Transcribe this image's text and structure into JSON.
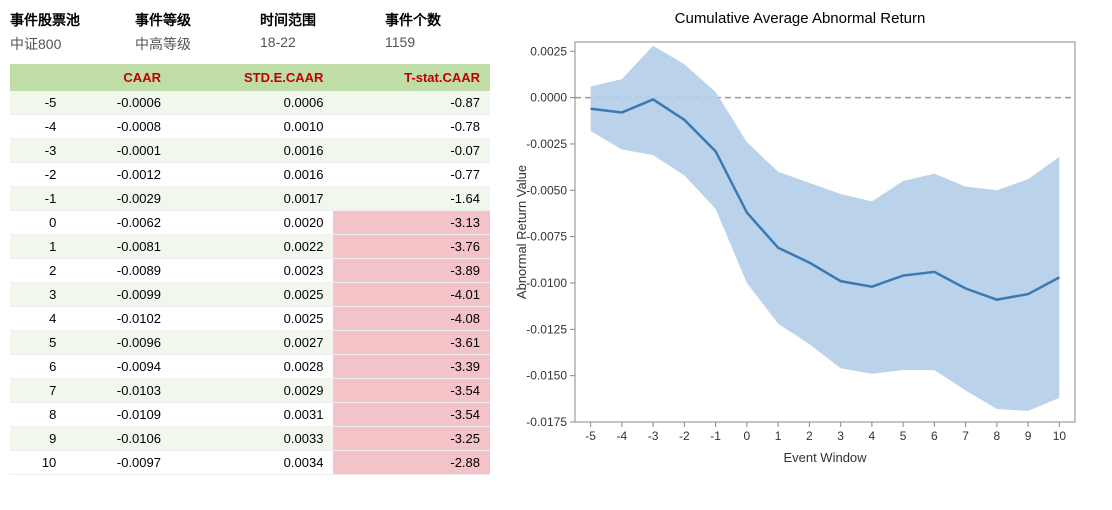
{
  "meta": {
    "pool": {
      "label": "事件股票池",
      "value": "中证800"
    },
    "grade": {
      "label": "事件等级",
      "value": "中高等级"
    },
    "range": {
      "label": "时间范围",
      "value": "18-22"
    },
    "count": {
      "label": "事件个数",
      "value": "1159"
    }
  },
  "table": {
    "columns": [
      "",
      "CAAR",
      "STD.E.CAAR",
      "T-stat.CAAR"
    ],
    "header_colors": [
      "#000000",
      "#c00000",
      "#c00000",
      "#c00000"
    ],
    "header_bg": "#c0dca7",
    "stripe_bg": "#f1f7ed",
    "highlight_bg": "#f4c3c7",
    "rows": [
      {
        "idx": -5,
        "caar": "-0.0006",
        "std": "0.0006",
        "t": "-0.87",
        "hl": false
      },
      {
        "idx": -4,
        "caar": "-0.0008",
        "std": "0.0010",
        "t": "-0.78",
        "hl": false
      },
      {
        "idx": -3,
        "caar": "-0.0001",
        "std": "0.0016",
        "t": "-0.07",
        "hl": false
      },
      {
        "idx": -2,
        "caar": "-0.0012",
        "std": "0.0016",
        "t": "-0.77",
        "hl": false
      },
      {
        "idx": -1,
        "caar": "-0.0029",
        "std": "0.0017",
        "t": "-1.64",
        "hl": false
      },
      {
        "idx": 0,
        "caar": "-0.0062",
        "std": "0.0020",
        "t": "-3.13",
        "hl": true
      },
      {
        "idx": 1,
        "caar": "-0.0081",
        "std": "0.0022",
        "t": "-3.76",
        "hl": true
      },
      {
        "idx": 2,
        "caar": "-0.0089",
        "std": "0.0023",
        "t": "-3.89",
        "hl": true
      },
      {
        "idx": 3,
        "caar": "-0.0099",
        "std": "0.0025",
        "t": "-4.01",
        "hl": true
      },
      {
        "idx": 4,
        "caar": "-0.0102",
        "std": "0.0025",
        "t": "-4.08",
        "hl": true
      },
      {
        "idx": 5,
        "caar": "-0.0096",
        "std": "0.0027",
        "t": "-3.61",
        "hl": true
      },
      {
        "idx": 6,
        "caar": "-0.0094",
        "std": "0.0028",
        "t": "-3.39",
        "hl": true
      },
      {
        "idx": 7,
        "caar": "-0.0103",
        "std": "0.0029",
        "t": "-3.54",
        "hl": true
      },
      {
        "idx": 8,
        "caar": "-0.0109",
        "std": "0.0031",
        "t": "-3.54",
        "hl": true
      },
      {
        "idx": 9,
        "caar": "-0.0106",
        "std": "0.0033",
        "t": "-3.25",
        "hl": true
      },
      {
        "idx": 10,
        "caar": "-0.0097",
        "std": "0.0034",
        "t": "-2.88",
        "hl": true
      }
    ]
  },
  "chart": {
    "title": "Cumulative Average Abnormal Return",
    "xlabel": "Event Window",
    "ylabel": "Abnormal Return Value",
    "type": "line",
    "line_color": "#3c78b4",
    "line_width": 2.5,
    "band_color": "#b4cee8",
    "band_opacity": 0.9,
    "zero_line_color": "#999999",
    "zero_line_dash": "6,4",
    "border_color": "#888888",
    "grid_color": "#e0e0e0",
    "background_color": "#ffffff",
    "label_fontsize": 12,
    "title_fontsize": 15,
    "x": [
      -5,
      -4,
      -3,
      -2,
      -1,
      0,
      1,
      2,
      3,
      4,
      5,
      6,
      7,
      8,
      9,
      10
    ],
    "y": [
      -0.0006,
      -0.0008,
      -0.0001,
      -0.0012,
      -0.0029,
      -0.0062,
      -0.0081,
      -0.0089,
      -0.0099,
      -0.0102,
      -0.0096,
      -0.0094,
      -0.0103,
      -0.0109,
      -0.0106,
      -0.0097
    ],
    "upper": [
      0.0006,
      0.001,
      0.0028,
      0.0018,
      0.0003,
      -0.0024,
      -0.004,
      -0.0046,
      -0.0052,
      -0.0056,
      -0.0045,
      -0.0041,
      -0.0048,
      -0.005,
      -0.0044,
      -0.0032
    ],
    "lower": [
      -0.0018,
      -0.0028,
      -0.0031,
      -0.0042,
      -0.006,
      -0.01,
      -0.0122,
      -0.0133,
      -0.0146,
      -0.0149,
      -0.0147,
      -0.0147,
      -0.0158,
      -0.0168,
      -0.0169,
      -0.0162
    ],
    "ylim": [
      -0.0175,
      0.003
    ],
    "yticks": [
      -0.0175,
      -0.015,
      -0.0125,
      -0.01,
      -0.0075,
      -0.005,
      -0.0025,
      0.0,
      0.0025
    ],
    "xlim": [
      -5.5,
      10.5
    ],
    "xticks": [
      -5,
      -4,
      -3,
      -2,
      -1,
      0,
      1,
      2,
      3,
      4,
      5,
      6,
      7,
      8,
      9,
      10
    ]
  }
}
